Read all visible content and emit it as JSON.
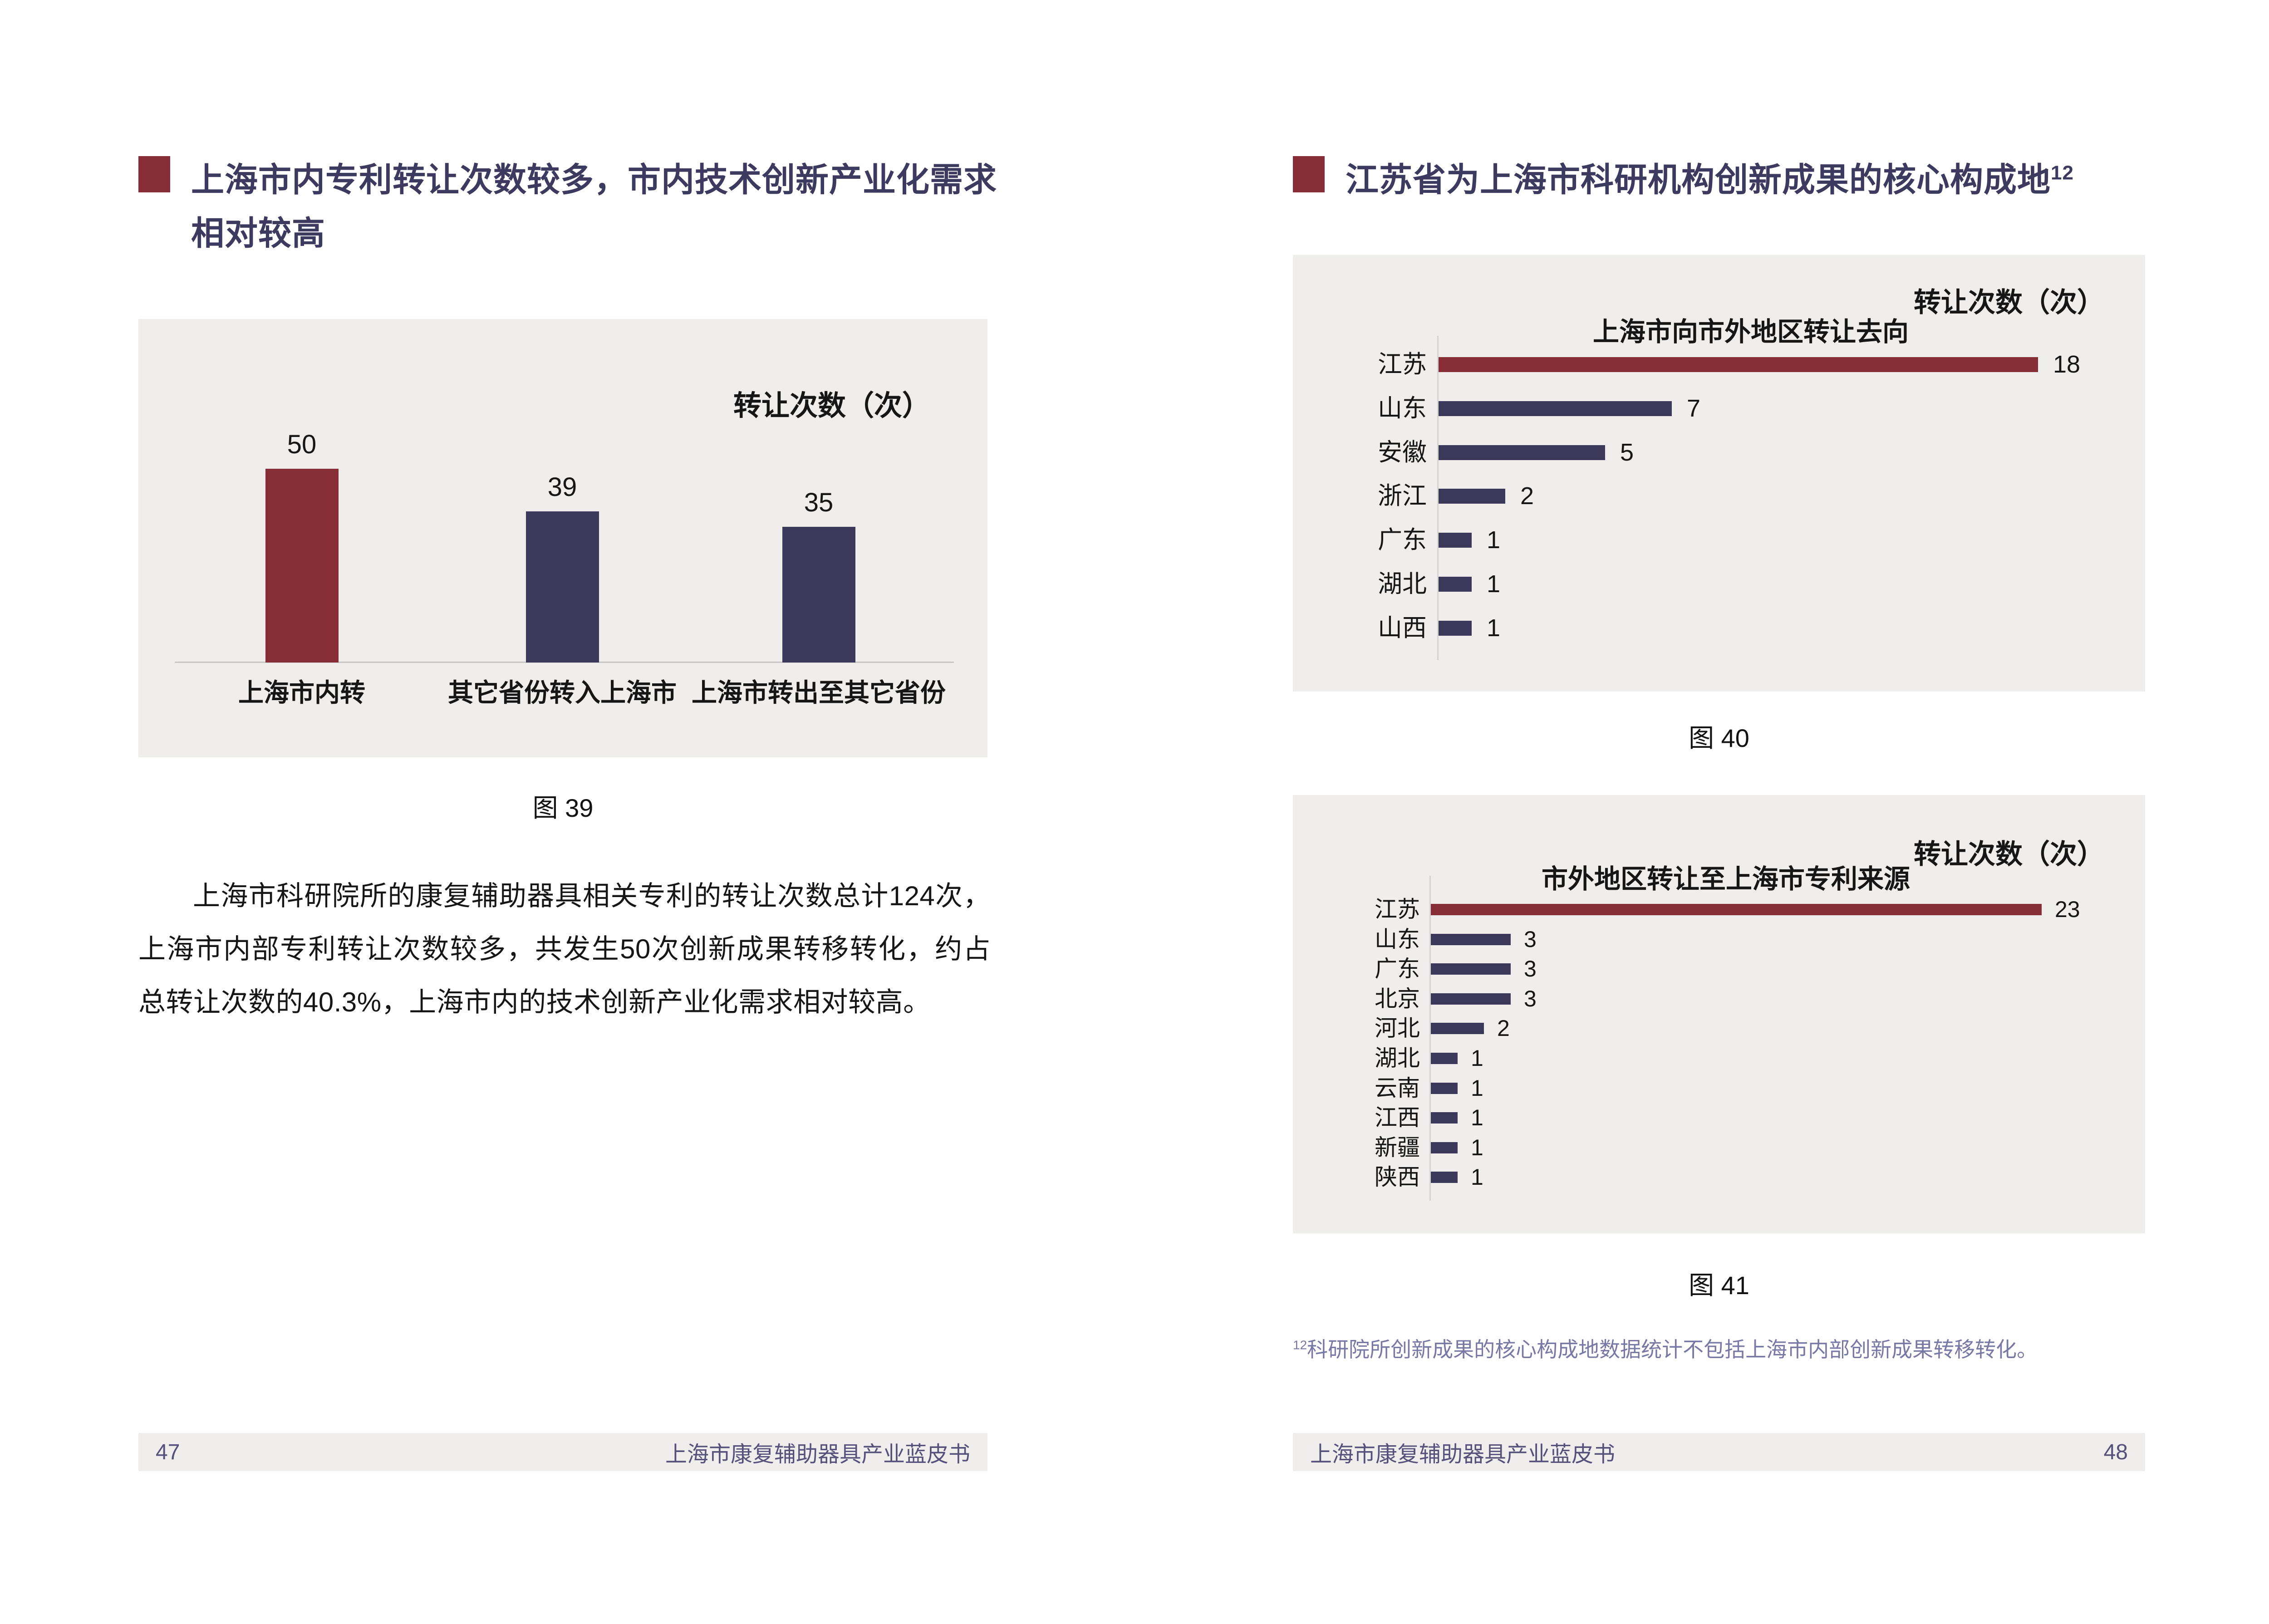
{
  "colors": {
    "accent_red": "#862D35",
    "navy": "#3C3859",
    "title_text": "#3D3A60",
    "panel_bg": "#EFEEEC",
    "footnote_text": "#7878A6",
    "footer_text": "#55517A"
  },
  "pages": {
    "left": {
      "section_title": "上海市内专利转让次数较多，市内技术创新产业化需求相对较高",
      "paragraph": "上海市科研院所的康复辅助器具相关专利的转让次数总计124次，上海市内部专利转让次数较多，共发生50次创新成果转移转化，约占总转让次数的40.3%，上海市内的技术创新产业化需求相对较高。",
      "footer": {
        "page_number": "47",
        "book_title": "上海市康复辅助器具产业蓝皮书"
      }
    },
    "right": {
      "section_title": "江苏省为上海市科研机构创新成果的核心构成地",
      "section_title_superscript": "12",
      "footnote_superscript": "12",
      "footnote": "科研院所创新成果的核心构成地数据统计不包括上海市内部创新成果转移转化。",
      "footer": {
        "book_title": "上海市康复辅助器具产业蓝皮书",
        "page_number": "48"
      }
    }
  },
  "chart_data": [
    {
      "id": "fig39",
      "type": "bar",
      "title": "",
      "unit_label": "转让次数（次）",
      "categories": [
        "上海市内转",
        "其它省份转入上海市",
        "上海市转出至其它省份"
      ],
      "values": [
        50,
        39,
        35
      ],
      "colors": [
        "#862D35",
        "#3C3859",
        "#3C3859"
      ],
      "ylim": [
        0,
        50
      ],
      "grid": "off",
      "caption": "图 39"
    },
    {
      "id": "fig40",
      "type": "bar-horizontal",
      "title": "上海市向市外地区转让去向",
      "unit_label": "转让次数（次）",
      "categories": [
        "江苏",
        "山东",
        "安徽",
        "浙江",
        "广东",
        "湖北",
        "山西"
      ],
      "values": [
        18,
        7,
        5,
        2,
        1,
        1,
        1
      ],
      "colors": [
        "#862D35",
        "#3C3859",
        "#3C3859",
        "#3C3859",
        "#3C3859",
        "#3C3859",
        "#3C3859"
      ],
      "xlim": [
        0,
        18
      ],
      "grid": "off",
      "caption": "图 40"
    },
    {
      "id": "fig41",
      "type": "bar-horizontal",
      "title": "市外地区转让至上海市专利来源",
      "unit_label": "转让次数（次）",
      "categories": [
        "江苏",
        "山东",
        "广东",
        "北京",
        "河北",
        "湖北",
        "云南",
        "江西",
        "新疆",
        "陕西"
      ],
      "values": [
        23,
        3,
        3,
        3,
        2,
        1,
        1,
        1,
        1,
        1
      ],
      "colors": [
        "#862D35",
        "#3C3859",
        "#3C3859",
        "#3C3859",
        "#3C3859",
        "#3C3859",
        "#3C3859",
        "#3C3859",
        "#3C3859",
        "#3C3859"
      ],
      "xlim": [
        0,
        23
      ],
      "grid": "off",
      "caption": "图 41"
    }
  ]
}
